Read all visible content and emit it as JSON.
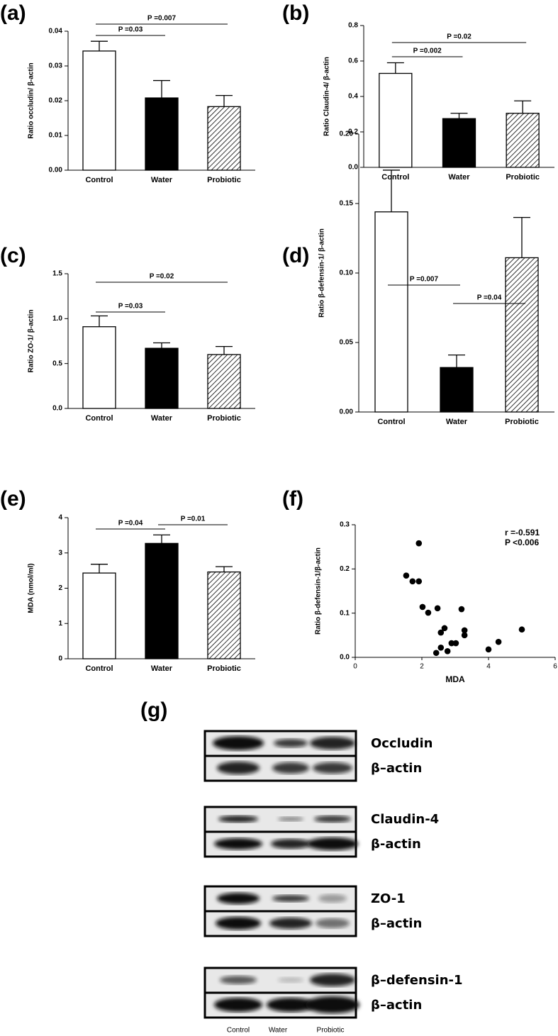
{
  "chart_data": [
    {
      "type": "bar",
      "panel_label": "(a)",
      "y_label": "Ratio occludin/ β-actin",
      "categories": [
        "Control",
        "Water",
        "Probiotic"
      ],
      "values": [
        0.0343,
        0.0208,
        0.0183
      ],
      "errors": [
        0.0028,
        0.005,
        0.0032
      ],
      "fills": [
        "white",
        "black",
        "hatched"
      ],
      "ylim": [
        0,
        0.04
      ],
      "yticks": [
        {
          "value": 0,
          "label": "0.00"
        },
        {
          "value": 0.01,
          "label": "0.01"
        },
        {
          "value": 0.02,
          "label": "0.02"
        },
        {
          "value": 0.03,
          "label": "0.03"
        },
        {
          "value": 0.04,
          "label": "0.04"
        }
      ],
      "annotations": [
        "P =0.03",
        "P =0.007"
      ]
    },
    {
      "type": "bar",
      "panel_label": "(b)",
      "y_label": "Ratio Claudin-4/ β-actin",
      "categories": [
        "Control",
        "Water",
        "Probiotic"
      ],
      "values": [
        0.53,
        0.275,
        0.305
      ],
      "errors": [
        0.06,
        0.03,
        0.07
      ],
      "fills": [
        "white",
        "black",
        "hatched"
      ],
      "ylim": [
        0,
        0.8
      ],
      "yticks": [
        {
          "value": 0,
          "label": "0.0"
        },
        0.2,
        0.4,
        0.6,
        0.8
      ],
      "annotations": [
        "P =0.002",
        "P =0.02"
      ]
    },
    {
      "type": "bar",
      "panel_label": "(c)",
      "y_label": "Ratio ZO-1/ β-actin",
      "categories": [
        "Control",
        "Water",
        "Probiotic"
      ],
      "values": [
        0.91,
        0.67,
        0.6
      ],
      "errors": [
        0.12,
        0.06,
        0.09
      ],
      "fills": [
        "white",
        "black",
        "hatched"
      ],
      "ylim": [
        0,
        1.5
      ],
      "yticks": [
        {
          "value": 0,
          "label": "0.0"
        },
        0.5,
        {
          "value": 1,
          "label": "1.0"
        },
        1.5
      ],
      "annotations": [
        "P =0.03",
        "P =0.02"
      ]
    },
    {
      "type": "bar",
      "panel_label": "(d)",
      "y_label": "Ratio β-defensin-1/ β-actin",
      "categories": [
        "Control",
        "Water",
        "Probiotic"
      ],
      "values": [
        0.144,
        0.032,
        0.111
      ],
      "errors": [
        0.03,
        0.009,
        0.029
      ],
      "fills": [
        "white",
        "black",
        "hatched"
      ],
      "ylim": [
        0,
        0.2
      ],
      "yticks": [
        {
          "value": 0,
          "label": "0.00"
        },
        0.05,
        {
          "value": 0.1,
          "label": "0.10"
        },
        0.15,
        {
          "value": 0.2,
          "label": "0.20"
        }
      ],
      "annotations": [
        "P =0.007",
        "P =0.04"
      ]
    },
    {
      "type": "bar",
      "panel_label": "(e)",
      "y_label": "MDA (nmol/ml)",
      "categories": [
        "Control",
        "Water",
        "Probiotic"
      ],
      "values": [
        2.43,
        3.27,
        2.46
      ],
      "errors": [
        0.25,
        0.24,
        0.15
      ],
      "fills": [
        "white",
        "black",
        "hatched"
      ],
      "ylim": [
        0,
        4
      ],
      "yticks": [
        0,
        1,
        2,
        3,
        4
      ],
      "annotations": [
        "P =0.04",
        "P =0.01"
      ]
    },
    {
      "type": "scatter",
      "panel_label": "(f)",
      "x_label": "MDA",
      "y_label": "Ratio β-defensin-1/β-actin",
      "x": [
        1.91,
        1.53,
        1.72,
        1.91,
        2.02,
        2.19,
        2.47,
        3.19,
        2.68,
        2.57,
        3.28,
        3.28,
        2.89,
        3.02,
        2.57,
        2.77,
        2.43,
        4.0,
        4.3,
        5.0
      ],
      "values": [
        0.258,
        0.185,
        0.172,
        0.172,
        0.114,
        0.101,
        0.111,
        0.109,
        0.066,
        0.056,
        0.061,
        0.05,
        0.032,
        0.032,
        0.022,
        0.014,
        0.01,
        0.018,
        0.035,
        0.063
      ],
      "color": "#000000",
      "xlim": [
        0,
        6
      ],
      "xticks": [
        0,
        2,
        4,
        6
      ],
      "ylim": [
        0,
        0.3
      ],
      "yticks": [
        {
          "value": 0,
          "label": "0.0"
        },
        0.1,
        0.2,
        0.3
      ],
      "annotations": [
        "r =-0.591",
        "P <0.006"
      ]
    }
  ],
  "blot": {
    "panel_label": "(g)",
    "rows": [
      "Occludin",
      "β–actin",
      "Claudin-4",
      "β-actin",
      "ZO-1",
      "β–actin",
      "β–defensin-1",
      "β–actin"
    ],
    "lanes": [
      "Control",
      "Water",
      "Probiotic"
    ]
  }
}
